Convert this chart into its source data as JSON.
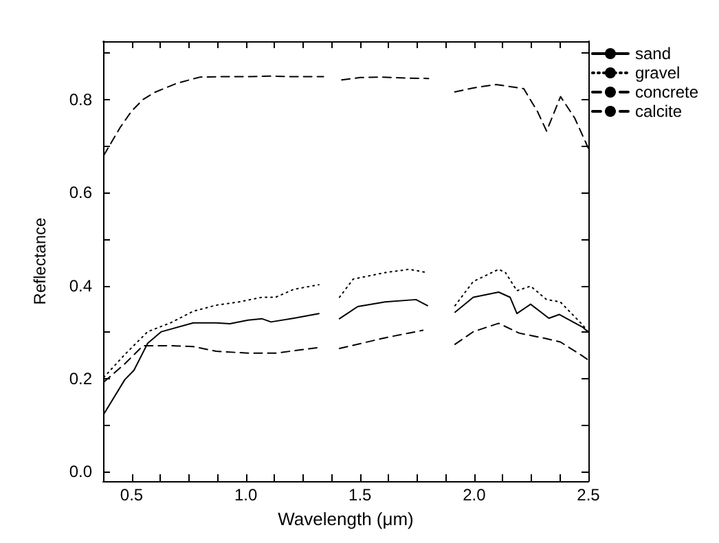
{
  "chart_data": {
    "type": "line",
    "xlabel": "Wavelength (μm)",
    "ylabel": "Reflectance",
    "xlim": [
      0.375,
      2.5
    ],
    "ylim": [
      -0.02,
      0.925
    ],
    "xticks": [
      {
        "value": 0.375,
        "label": null
      },
      0.5,
      {
        "value": 0.625,
        "label": null
      },
      {
        "value": 0.75,
        "label": null
      },
      {
        "value": 0.875,
        "label": null
      },
      {
        "value": 1.0,
        "label": "1.0"
      },
      {
        "value": 1.125,
        "label": null
      },
      {
        "value": 1.25,
        "label": null
      },
      {
        "value": 1.375,
        "label": null
      },
      1.5,
      {
        "value": 1.625,
        "label": null
      },
      {
        "value": 1.75,
        "label": null
      },
      {
        "value": 1.875,
        "label": null
      },
      {
        "value": 2.0,
        "label": "2.0"
      },
      {
        "value": 2.125,
        "label": null
      },
      {
        "value": 2.25,
        "label": null
      },
      {
        "value": 2.375,
        "label": null
      },
      2.5
    ],
    "yticks": [
      {
        "value": 0,
        "label": "0.0"
      },
      {
        "value": 0.1,
        "label": null
      },
      0.2,
      {
        "value": 0.3,
        "label": null
      },
      0.4,
      {
        "value": 0.5,
        "label": null
      },
      0.6,
      {
        "value": 0.7,
        "label": null
      },
      0.8,
      {
        "value": 0.9,
        "label": null
      }
    ],
    "grid": false,
    "legend": "top right",
    "marker": "none",
    "series": [
      {
        "name": "sand",
        "color": "#000000",
        "line_style": "solid",
        "x": [
          0.378,
          0.47,
          0.51,
          0.57,
          0.63,
          0.77,
          0.87,
          0.93,
          1.01,
          1.07,
          1.11,
          1.21,
          1.32,
          1.37,
          1.41,
          1.49,
          1.61,
          1.745,
          1.795,
          1.85,
          1.916,
          1.996,
          2.107,
          2.157,
          2.187,
          2.247,
          2.327,
          2.373,
          2.474,
          2.5
        ],
        "values": [
          0.124,
          0.198,
          0.218,
          0.276,
          0.301,
          0.32,
          0.32,
          0.318,
          0.326,
          0.329,
          0.322,
          0.33,
          0.34,
          null,
          0.329,
          0.355,
          0.365,
          0.37,
          0.357,
          null,
          0.343,
          0.375,
          0.386,
          0.375,
          0.34,
          0.36,
          0.33,
          0.338,
          0.311,
          0.3
        ]
      },
      {
        "name": "gravel",
        "color": "#000000",
        "line_style": "dotted",
        "x": [
          0.378,
          0.47,
          0.57,
          0.67,
          0.77,
          0.87,
          0.97,
          1.07,
          1.13,
          1.21,
          1.32,
          1.37,
          1.41,
          1.47,
          1.61,
          1.715,
          1.795,
          1.85,
          1.916,
          1.996,
          2.107,
          2.137,
          2.187,
          2.247,
          2.317,
          2.377,
          2.474,
          2.5
        ],
        "values": [
          0.203,
          0.252,
          0.301,
          0.32,
          0.345,
          0.358,
          0.365,
          0.375,
          0.375,
          0.392,
          0.402,
          null,
          0.375,
          0.414,
          0.428,
          0.435,
          0.428,
          null,
          0.357,
          0.409,
          0.435,
          0.428,
          0.389,
          0.399,
          0.37,
          0.365,
          0.316,
          0.3
        ]
      },
      {
        "name": "concrete",
        "color": "#000000",
        "line_style": "dashed",
        "x": [
          0.378,
          0.47,
          0.55,
          0.67,
          0.77,
          0.87,
          1.01,
          1.13,
          1.32,
          1.37,
          1.41,
          1.61,
          1.775,
          1.85,
          1.916,
          1.996,
          2.107,
          2.197,
          2.317,
          2.377,
          2.474,
          2.5
        ],
        "values": [
          0.193,
          0.232,
          0.271,
          0.271,
          0.269,
          0.259,
          0.255,
          0.255,
          0.267,
          null,
          0.265,
          0.288,
          0.304,
          null,
          0.274,
          0.301,
          0.319,
          0.298,
          0.286,
          0.279,
          0.249,
          0.24
        ]
      },
      {
        "name": "calcite",
        "color": "#000000",
        "line_style": "dashed",
        "x": [
          0.378,
          0.45,
          0.5,
          0.55,
          0.6,
          0.7,
          0.8,
          0.9,
          1.0,
          1.1,
          1.2,
          1.34,
          1.38,
          1.42,
          1.5,
          1.6,
          1.7,
          1.8,
          1.87,
          1.915,
          2.0,
          2.096,
          2.217,
          2.277,
          2.317,
          2.378,
          2.44,
          2.5
        ],
        "values": [
          0.68,
          0.74,
          0.775,
          0.8,
          0.815,
          0.835,
          0.848,
          0.849,
          0.849,
          0.85,
          0.849,
          0.849,
          null,
          0.842,
          0.847,
          0.848,
          0.846,
          0.845,
          null,
          0.816,
          0.825,
          0.832,
          0.823,
          0.774,
          0.732,
          0.806,
          0.76,
          0.695
        ]
      }
    ]
  }
}
